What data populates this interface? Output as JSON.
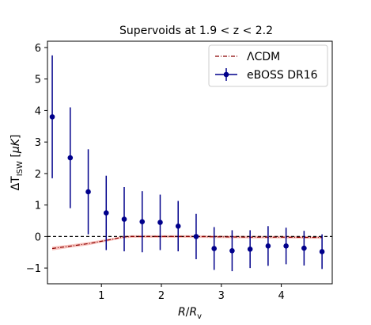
{
  "chart_data": {
    "type": "scatter",
    "title": "Supervoids at 1.9 < z < 2.2",
    "xlabel": "R/R_v",
    "ylabel": "ΔT_ISW [μK]",
    "xlim": [
      0.1,
      4.85
    ],
    "ylim": [
      -1.5,
      6.2
    ],
    "xticks": [
      1,
      2,
      3,
      4
    ],
    "yticks": [
      -1,
      0,
      1,
      2,
      3,
      4,
      5,
      6
    ],
    "xtick_labels": [
      "1",
      "2",
      "3",
      "4"
    ],
    "ytick_labels": [
      "−1",
      "0",
      "1",
      "2",
      "3",
      "4",
      "5",
      "6"
    ],
    "zero_line": {
      "y": 0,
      "style": "dashed",
      "color": "#000000"
    },
    "series": [
      {
        "name": "eBOSS DR16",
        "kind": "errorbar",
        "color": "#00008b",
        "x": [
          0.18,
          0.48,
          0.78,
          1.08,
          1.38,
          1.68,
          1.98,
          2.28,
          2.58,
          2.88,
          3.18,
          3.48,
          3.78,
          4.08,
          4.38,
          4.68
        ],
        "y": [
          3.8,
          2.5,
          1.42,
          0.75,
          0.55,
          0.47,
          0.45,
          0.33,
          0.0,
          -0.38,
          -0.45,
          -0.4,
          -0.3,
          -0.3,
          -0.37,
          -0.48
        ],
        "yerr": [
          1.95,
          1.6,
          1.35,
          1.18,
          1.02,
          0.97,
          0.88,
          0.8,
          0.72,
          0.68,
          0.65,
          0.6,
          0.63,
          0.58,
          0.55,
          0.55
        ]
      },
      {
        "name": "ΛCDM",
        "kind": "line_band",
        "color": "#8b0000",
        "band_color": "#f4a6a0",
        "x": [
          0.18,
          0.5,
          0.8,
          1.0,
          1.2,
          1.35,
          1.5,
          2.0,
          2.5,
          3.0,
          3.5,
          4.0,
          4.5,
          4.68
        ],
        "y": [
          -0.38,
          -0.3,
          -0.22,
          -0.15,
          -0.08,
          -0.02,
          0.0,
          0.0,
          0.0,
          -0.01,
          -0.02,
          -0.02,
          -0.03,
          -0.03
        ],
        "band": [
          0.06,
          0.05,
          0.05,
          0.04,
          0.04,
          0.04,
          0.04,
          0.04,
          0.04,
          0.04,
          0.04,
          0.04,
          0.04,
          0.04
        ]
      }
    ],
    "legend": {
      "placement": "top-right",
      "entries": [
        "ΛCDM",
        "eBOSS DR16"
      ]
    }
  }
}
